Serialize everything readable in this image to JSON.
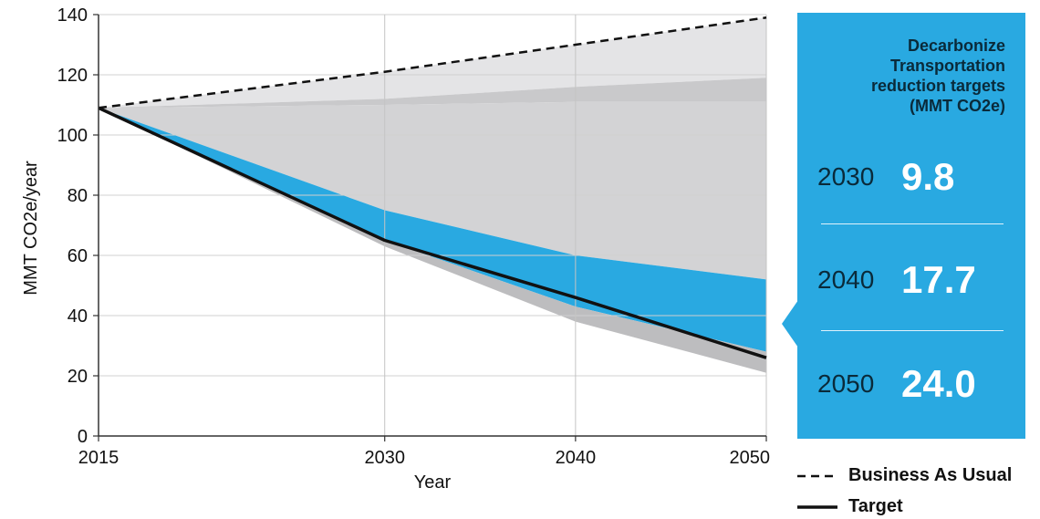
{
  "chart_data": {
    "type": "area",
    "xlabel": "Year",
    "ylabel": "MMT CO2e/year",
    "x_ticks": [
      2015,
      2030,
      2040,
      2050
    ],
    "y_ticks": [
      0,
      20,
      40,
      60,
      80,
      100,
      120,
      140
    ],
    "xlim": [
      2015,
      2050
    ],
    "ylim": [
      0,
      140
    ],
    "grid": true,
    "bands": [
      {
        "color": "#e4e4e6",
        "x": [
          2015,
          2030,
          2040,
          2050
        ],
        "upper": [
          109,
          121,
          130,
          139
        ],
        "lower": [
          109,
          112,
          116,
          119
        ]
      },
      {
        "color": "#c9c9cb",
        "x": [
          2015,
          2030,
          2040,
          2050
        ],
        "upper": [
          109,
          112,
          116,
          119
        ],
        "lower": [
          109,
          110,
          111,
          111
        ]
      },
      {
        "color": "#d3d3d5",
        "x": [
          2015,
          2030,
          2040,
          2050
        ],
        "upper": [
          109,
          110,
          111,
          111
        ],
        "lower": [
          109,
          75,
          60,
          52
        ]
      },
      {
        "color": "#29a9e1",
        "x": [
          2015,
          2030,
          2040,
          2050
        ],
        "upper": [
          109,
          75,
          60,
          52
        ],
        "lower": [
          109,
          65,
          43,
          28
        ]
      },
      {
        "color": "#bdbdbf",
        "x": [
          2015,
          2030,
          2040,
          2050
        ],
        "upper": [
          109,
          65,
          43,
          28
        ],
        "lower": [
          109,
          63,
          38,
          21
        ]
      }
    ],
    "series": [
      {
        "name": "Business As Usual",
        "style": "dashed",
        "color": "#111111",
        "x": [
          2015,
          2030,
          2040,
          2050
        ],
        "values": [
          109,
          121,
          130,
          139
        ]
      },
      {
        "name": "Target",
        "style": "solid",
        "color": "#111111",
        "x": [
          2015,
          2030,
          2040,
          2050
        ],
        "values": [
          109,
          65,
          46,
          26
        ]
      }
    ],
    "legend": {
      "placement": "bottom-right"
    }
  },
  "panel": {
    "title_lines": [
      "Decarbonize",
      "Transportation",
      "reduction targets",
      "(MMT CO2e)"
    ],
    "targets": [
      {
        "year": "2030",
        "value": "9.8"
      },
      {
        "year": "2040",
        "value": "17.7"
      },
      {
        "year": "2050",
        "value": "24.0"
      }
    ],
    "color": "#29a9e1"
  },
  "legend": {
    "bau_label": "Business As Usual",
    "target_label": "Target"
  }
}
